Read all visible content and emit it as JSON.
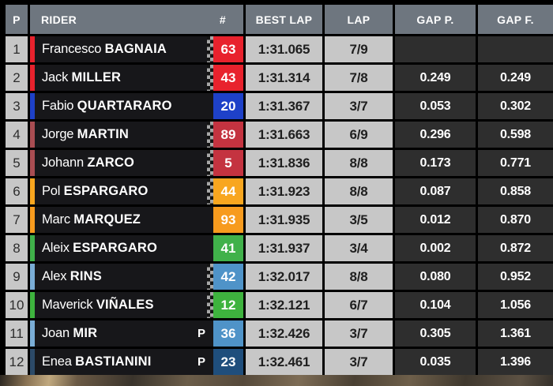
{
  "header": {
    "position": "P",
    "rider": "RIDER",
    "number": "#",
    "best_lap": "BEST LAP",
    "lap": "LAP",
    "gap_prev": "GAP P.",
    "gap_first": "GAP F."
  },
  "colors": {
    "header_bg": "#6e767f",
    "rider_cell_bg": "#17171a",
    "light_cell_bg": "#c7c7c7",
    "gap_cell_bg": "#2e2e2e",
    "border": "#000000"
  },
  "rows": [
    {
      "position": "1",
      "first_name": "Francesco",
      "last_name": "BAGNAIA",
      "pit": "",
      "number": "63",
      "number_bg": "#e8222d",
      "stripe_color": "#e8222d",
      "independent_dots": true,
      "best_lap": "1:31.065",
      "lap": "7/9",
      "gap_prev": "",
      "gap_first": ""
    },
    {
      "position": "2",
      "first_name": "Jack",
      "last_name": "MILLER",
      "pit": "",
      "number": "43",
      "number_bg": "#e8222d",
      "stripe_color": "#e8222d",
      "independent_dots": true,
      "best_lap": "1:31.314",
      "lap": "7/8",
      "gap_prev": "0.249",
      "gap_first": "0.249"
    },
    {
      "position": "3",
      "first_name": "Fabio",
      "last_name": "QUARTARARO",
      "pit": "",
      "number": "20",
      "number_bg": "#1e41c8",
      "stripe_color": "#1e41c8",
      "independent_dots": false,
      "best_lap": "1:31.367",
      "lap": "3/7",
      "gap_prev": "0.053",
      "gap_first": "0.302"
    },
    {
      "position": "4",
      "first_name": "Jorge",
      "last_name": "MARTIN",
      "pit": "",
      "number": "89",
      "number_bg": "#c43340",
      "stripe_color": "#a94d52",
      "independent_dots": true,
      "best_lap": "1:31.663",
      "lap": "6/9",
      "gap_prev": "0.296",
      "gap_first": "0.598"
    },
    {
      "position": "5",
      "first_name": "Johann",
      "last_name": "ZARCO",
      "pit": "",
      "number": "5",
      "number_bg": "#c43340",
      "stripe_color": "#a94d52",
      "independent_dots": true,
      "best_lap": "1:31.836",
      "lap": "8/8",
      "gap_prev": "0.173",
      "gap_first": "0.771"
    },
    {
      "position": "6",
      "first_name": "Pol",
      "last_name": "ESPARGARO",
      "pit": "",
      "number": "44",
      "number_bg": "#f8a61f",
      "stripe_color": "#f8a61f",
      "independent_dots": true,
      "best_lap": "1:31.923",
      "lap": "8/8",
      "gap_prev": "0.087",
      "gap_first": "0.858"
    },
    {
      "position": "7",
      "first_name": "Marc",
      "last_name": "MARQUEZ",
      "pit": "",
      "number": "93",
      "number_bg": "#f79b1e",
      "stripe_color": "#f79b1e",
      "independent_dots": false,
      "best_lap": "1:31.935",
      "lap": "3/5",
      "gap_prev": "0.012",
      "gap_first": "0.870"
    },
    {
      "position": "8",
      "first_name": "Aleix",
      "last_name": "ESPARGARO",
      "pit": "",
      "number": "41",
      "number_bg": "#40b14a",
      "stripe_color": "#40b14a",
      "independent_dots": false,
      "best_lap": "1:31.937",
      "lap": "3/4",
      "gap_prev": "0.002",
      "gap_first": "0.872"
    },
    {
      "position": "9",
      "first_name": "Alex",
      "last_name": "RINS",
      "pit": "",
      "number": "42",
      "number_bg": "#4f93c8",
      "stripe_color": "#7aadd6",
      "independent_dots": true,
      "best_lap": "1:32.017",
      "lap": "8/8",
      "gap_prev": "0.080",
      "gap_first": "0.952"
    },
    {
      "position": "10",
      "first_name": "Maverick",
      "last_name": "VIÑALES",
      "pit": "",
      "number": "12",
      "number_bg": "#3eb33e",
      "stripe_color": "#3eb33e",
      "independent_dots": true,
      "best_lap": "1:32.121",
      "lap": "6/7",
      "gap_prev": "0.104",
      "gap_first": "1.056"
    },
    {
      "position": "11",
      "first_name": "Joan",
      "last_name": "MIR",
      "pit": "P",
      "number": "36",
      "number_bg": "#4f93c8",
      "stripe_color": "#7aadd6",
      "independent_dots": false,
      "best_lap": "1:32.426",
      "lap": "3/7",
      "gap_prev": "0.305",
      "gap_first": "1.361"
    },
    {
      "position": "12",
      "first_name": "Enea",
      "last_name": "BASTIANINI",
      "pit": "P",
      "number": "23",
      "number_bg": "#1f4e7c",
      "stripe_color": "#2c4a68",
      "independent_dots": false,
      "best_lap": "1:32.461",
      "lap": "3/7",
      "gap_prev": "0.035",
      "gap_first": "1.396"
    }
  ]
}
